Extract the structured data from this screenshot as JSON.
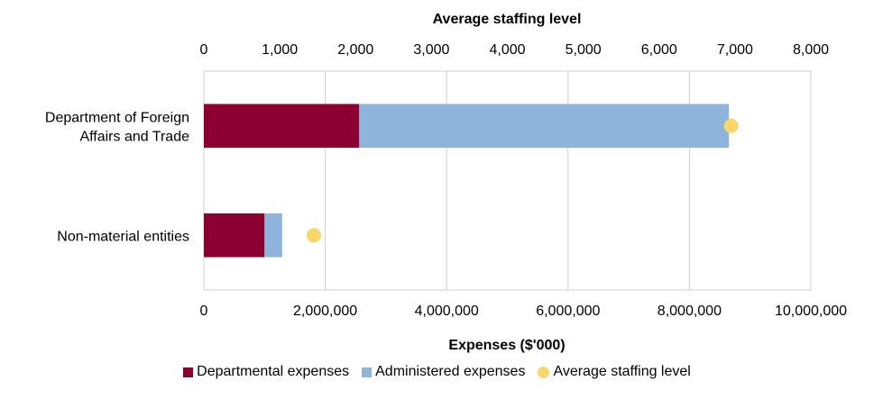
{
  "chart_data": {
    "type": "bar",
    "orientation": "horizontal",
    "stacked": true,
    "categories": [
      "Department of Foreign Affairs and Trade",
      "Non-material entities"
    ],
    "category_label_lines": [
      [
        "Department of Foreign",
        "Affairs and Trade"
      ],
      [
        "Non-material entities"
      ]
    ],
    "series": [
      {
        "name": "Departmental expenses",
        "color": "#8B0030",
        "values": [
          2560000,
          1000000
        ]
      },
      {
        "name": "Administered expenses",
        "color": "#8EB4DC",
        "values": [
          6090000,
          290000
        ]
      }
    ],
    "markers": {
      "name": "Average staffing level",
      "color": "#F9D66A",
      "values": [
        6950,
        1450
      ]
    },
    "xlabel": "Expenses ($'000)",
    "x_ticks": [
      "0",
      "2,000,000",
      "4,000,000",
      "6,000,000",
      "8,000,000",
      "10,000,000"
    ],
    "xlim": [
      0,
      10000000
    ],
    "x2label": "Average staffing level",
    "x2_ticks": [
      "0",
      "1,000",
      "2,000",
      "3,000",
      "4,000",
      "5,000",
      "6,000",
      "7,000",
      "8,000"
    ],
    "x2lim": [
      0,
      8000
    ],
    "grid": true,
    "legend_position": "bottom"
  }
}
